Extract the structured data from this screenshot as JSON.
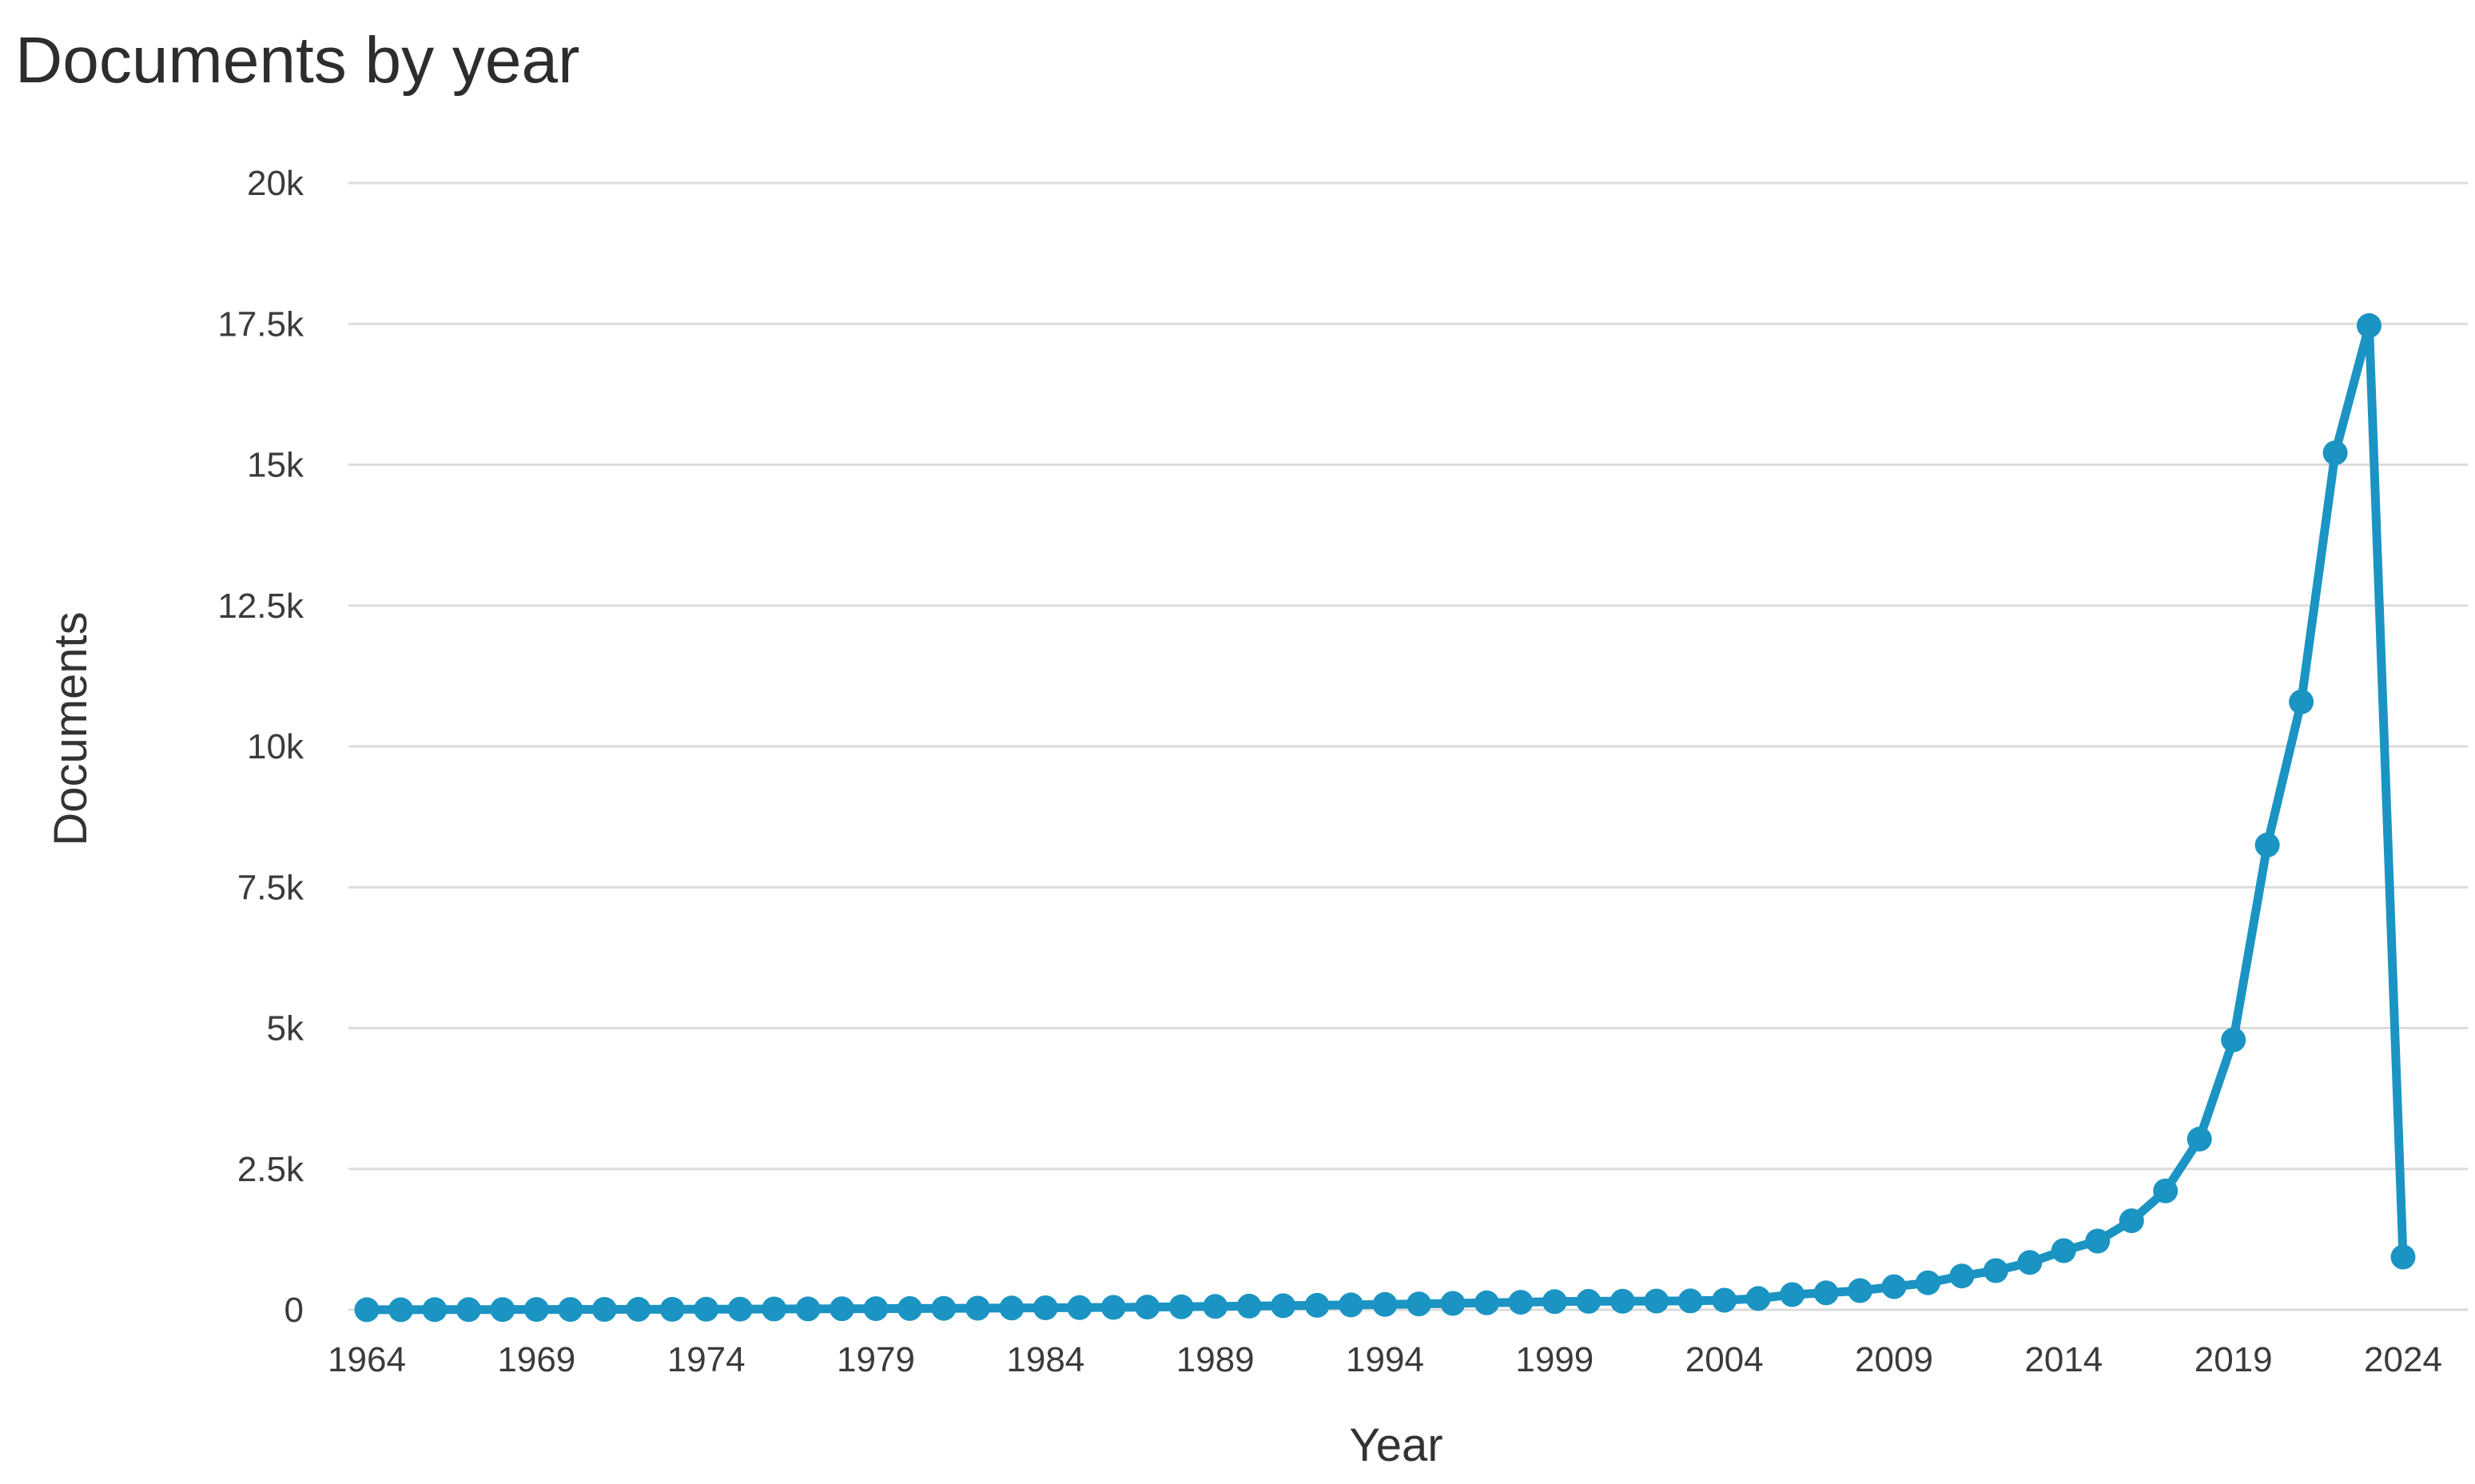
{
  "chart_data": {
    "type": "line",
    "title": "Documents by year",
    "xlabel": "Year",
    "ylabel": "Documents",
    "x": [
      1964,
      1965,
      1966,
      1967,
      1968,
      1969,
      1970,
      1971,
      1972,
      1973,
      1974,
      1975,
      1976,
      1977,
      1978,
      1979,
      1980,
      1981,
      1982,
      1983,
      1984,
      1985,
      1986,
      1987,
      1988,
      1989,
      1990,
      1991,
      1992,
      1993,
      1994,
      1995,
      1996,
      1997,
      1998,
      1999,
      2000,
      2001,
      2002,
      2003,
      2004,
      2005,
      2006,
      2007,
      2008,
      2009,
      2010,
      2011,
      2012,
      2013,
      2014,
      2015,
      2016,
      2017,
      2018,
      2019,
      2020,
      2021,
      2022,
      2023,
      2024
    ],
    "values": [
      2,
      2,
      3,
      3,
      4,
      5,
      6,
      7,
      8,
      9,
      10,
      12,
      14,
      16,
      18,
      20,
      22,
      25,
      28,
      31,
      35,
      39,
      43,
      48,
      53,
      59,
      65,
      72,
      79,
      87,
      95,
      104,
      113,
      123,
      134,
      145,
      150,
      152,
      155,
      158,
      170,
      200,
      270,
      300,
      340,
      410,
      480,
      600,
      695,
      840,
      1050,
      1220,
      1580,
      2110,
      3030,
      4790,
      8250,
      10790,
      15210,
      17470,
      936
    ],
    "series_name": "Documents",
    "x_ticks": [
      1964,
      1969,
      1974,
      1979,
      1984,
      1989,
      1994,
      1999,
      2004,
      2009,
      2014,
      2019,
      2024
    ],
    "y_ticks": {
      "values": [
        0,
        2500,
        5000,
        7500,
        10000,
        12500,
        15000,
        17500,
        20000
      ],
      "labels": [
        "0",
        "2.5k",
        "5k",
        "7.5k",
        "10k",
        "12.5k",
        "15k",
        "17.5k",
        "20k"
      ]
    },
    "ylim": [
      0,
      20000
    ],
    "xlim": [
      1963.5,
      2026
    ],
    "grid": true,
    "legend": false,
    "marker": "circle",
    "colors": {
      "line": "#1b94c3",
      "marker": "#1b94c3",
      "grid": "#dcdcdc",
      "title": "#2d2d2d",
      "axis_titles": "#333333",
      "tick_labels": "#3b3b3b",
      "background": "#ffffff"
    }
  }
}
